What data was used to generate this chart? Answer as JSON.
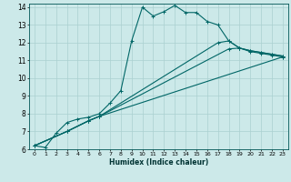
{
  "xlabel": "Humidex (Indice chaleur)",
  "bg_color": "#cce9e9",
  "grid_color": "#aad0d0",
  "line_color": "#006666",
  "xlim": [
    -0.5,
    23.5
  ],
  "ylim": [
    6,
    14.2
  ],
  "xticks": [
    0,
    1,
    2,
    3,
    4,
    5,
    6,
    7,
    8,
    9,
    10,
    11,
    12,
    13,
    14,
    15,
    16,
    17,
    18,
    19,
    20,
    21,
    22,
    23
  ],
  "yticks": [
    6,
    7,
    8,
    9,
    10,
    11,
    12,
    13,
    14
  ],
  "series": [
    {
      "x": [
        0,
        1,
        2,
        3,
        4,
        5,
        6,
        7,
        8,
        9,
        10,
        11,
        12,
        13,
        14,
        15,
        16,
        17,
        18,
        19,
        20,
        21,
        22,
        23
      ],
      "y": [
        6.2,
        6.1,
        6.9,
        7.5,
        7.7,
        7.8,
        8.0,
        8.6,
        9.3,
        12.1,
        14.0,
        13.5,
        13.75,
        14.1,
        13.7,
        13.7,
        13.2,
        13.0,
        12.1,
        11.7,
        11.5,
        11.4,
        11.3,
        11.2
      ]
    },
    {
      "x": [
        0,
        3,
        5,
        6,
        23
      ],
      "y": [
        6.2,
        7.0,
        7.6,
        7.85,
        11.2
      ]
    },
    {
      "x": [
        0,
        3,
        5,
        6,
        18,
        19,
        20,
        21,
        22,
        23
      ],
      "y": [
        6.2,
        7.0,
        7.6,
        7.85,
        11.65,
        11.7,
        11.55,
        11.45,
        11.35,
        11.25
      ]
    },
    {
      "x": [
        0,
        3,
        5,
        6,
        17,
        18,
        19,
        20,
        21,
        22,
        23
      ],
      "y": [
        6.2,
        7.0,
        7.6,
        7.85,
        12.0,
        12.1,
        11.7,
        11.55,
        11.45,
        11.35,
        11.25
      ]
    }
  ]
}
